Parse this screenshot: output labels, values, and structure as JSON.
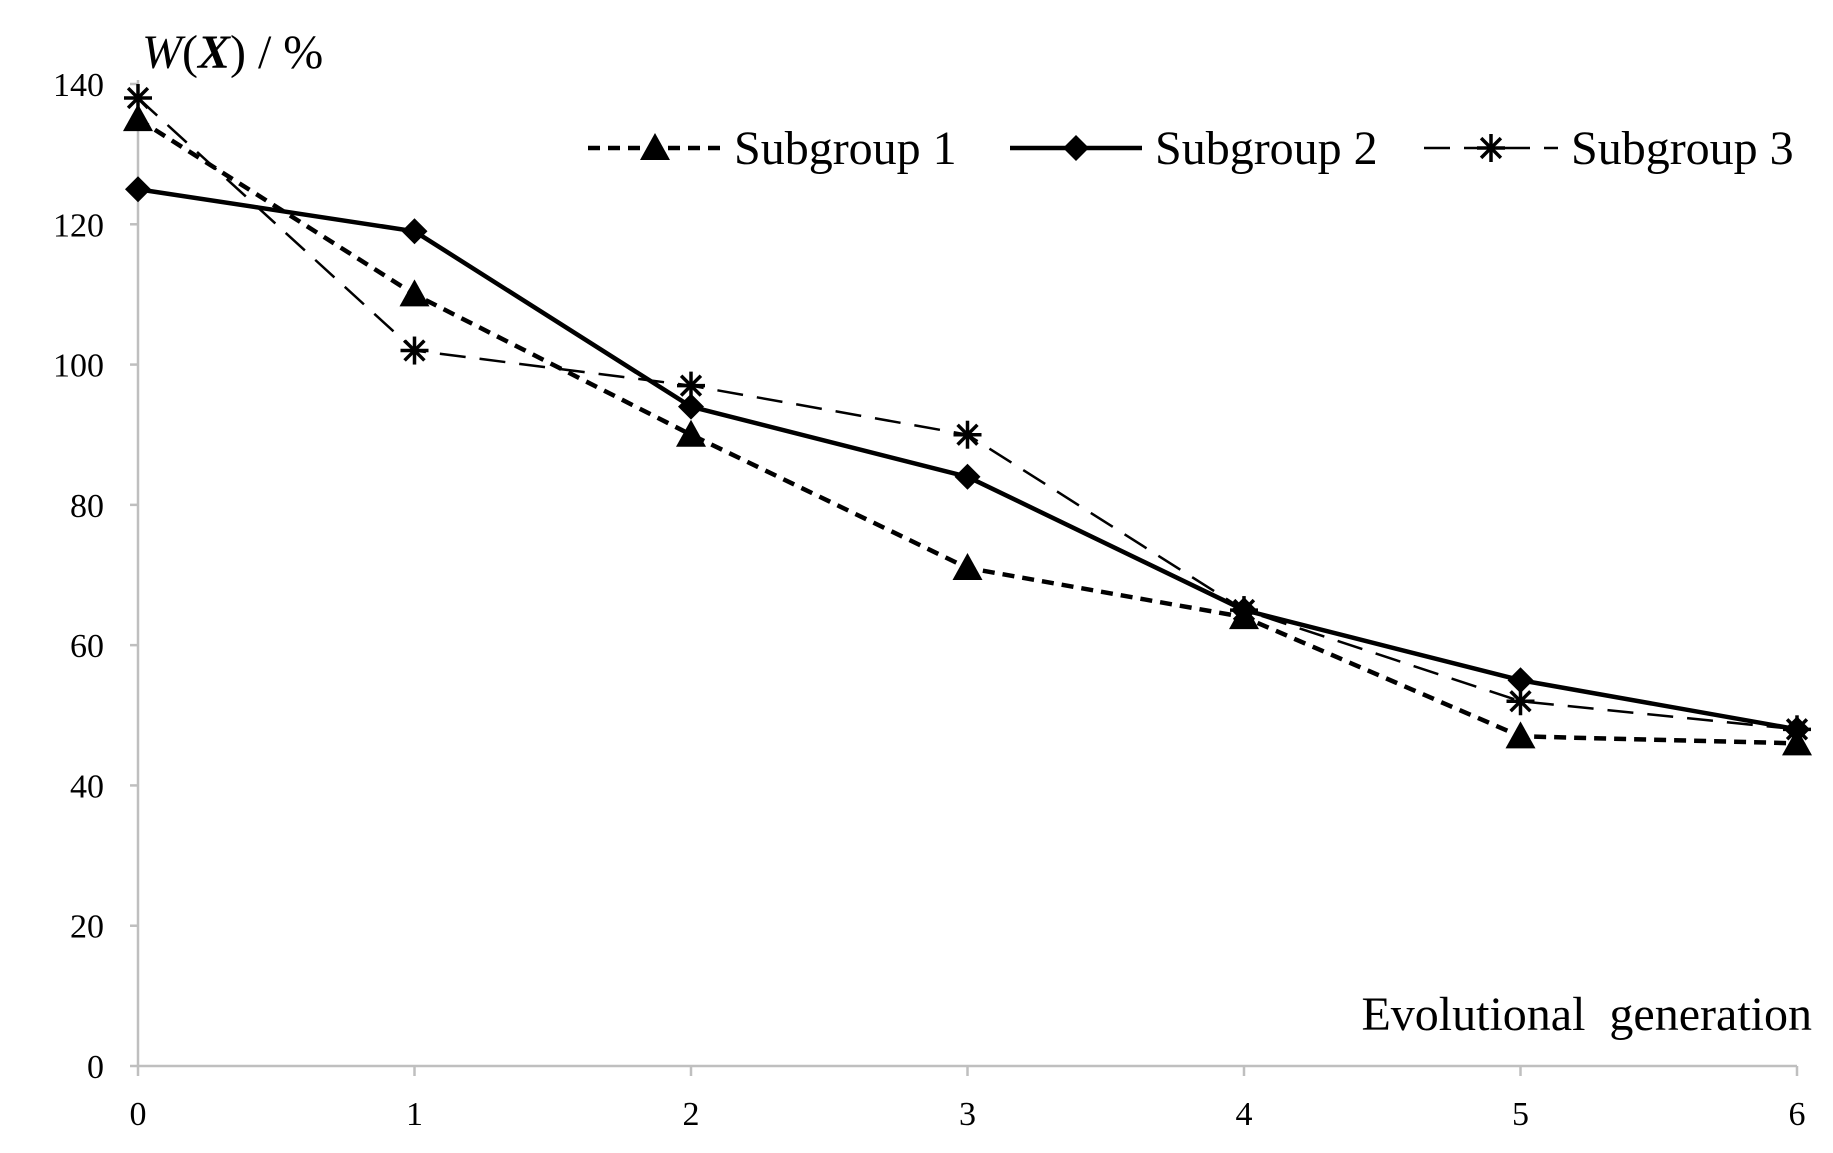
{
  "chart_data": {
    "type": "line",
    "title": "",
    "ylabel": "W(X) / %",
    "ylabel_parts": {
      "w": "W",
      "open": "(",
      "x": "X",
      "rest": ") / %"
    },
    "xlabel": "Evolutional  generation",
    "x": [
      0,
      1,
      2,
      3,
      4,
      5,
      6
    ],
    "xlim": [
      0,
      6
    ],
    "ylim": [
      0,
      140
    ],
    "yticks": [
      0,
      20,
      40,
      60,
      80,
      100,
      120,
      140
    ],
    "xticks": [
      0,
      1,
      2,
      3,
      4,
      5,
      6
    ],
    "grid": false,
    "legend_position": "top-right",
    "series": [
      {
        "name": "Subgroup 1",
        "style": "short-dash",
        "marker": "triangle",
        "values": [
          135,
          110,
          90,
          71,
          64,
          47,
          46
        ]
      },
      {
        "name": "Subgroup 2",
        "style": "solid",
        "marker": "diamond",
        "values": [
          125,
          119,
          94,
          84,
          65,
          55,
          48
        ]
      },
      {
        "name": "Subgroup 3",
        "style": "long-dash",
        "marker": "asterisk",
        "values": [
          138,
          102,
          97,
          90,
          65,
          52,
          48
        ]
      }
    ],
    "colors": {
      "line": "#000000",
      "axis": "#bfbfbf",
      "background": "#ffffff"
    }
  }
}
